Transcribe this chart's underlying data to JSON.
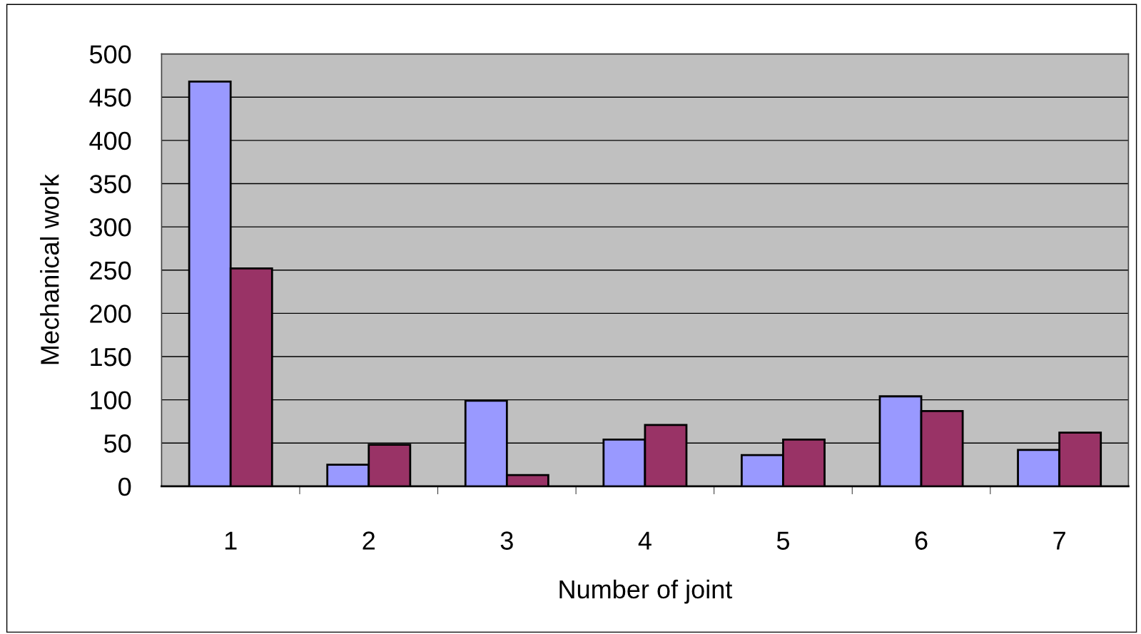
{
  "chart_data": {
    "type": "bar",
    "xlabel": "Number of joint",
    "ylabel": "Mechanical work",
    "categories": [
      "1",
      "2",
      "3",
      "4",
      "5",
      "6",
      "7"
    ],
    "series": [
      {
        "color": "#9999ff",
        "values": [
          468,
          25,
          99,
          54,
          36,
          104,
          42
        ]
      },
      {
        "color": "#993366",
        "values": [
          252,
          48,
          13,
          71,
          54,
          87,
          62
        ]
      }
    ],
    "ylim": [
      0,
      500
    ],
    "yticks": [
      0,
      50,
      100,
      150,
      200,
      250,
      300,
      350,
      400,
      450,
      500
    ],
    "grid": "y",
    "legend": false
  }
}
